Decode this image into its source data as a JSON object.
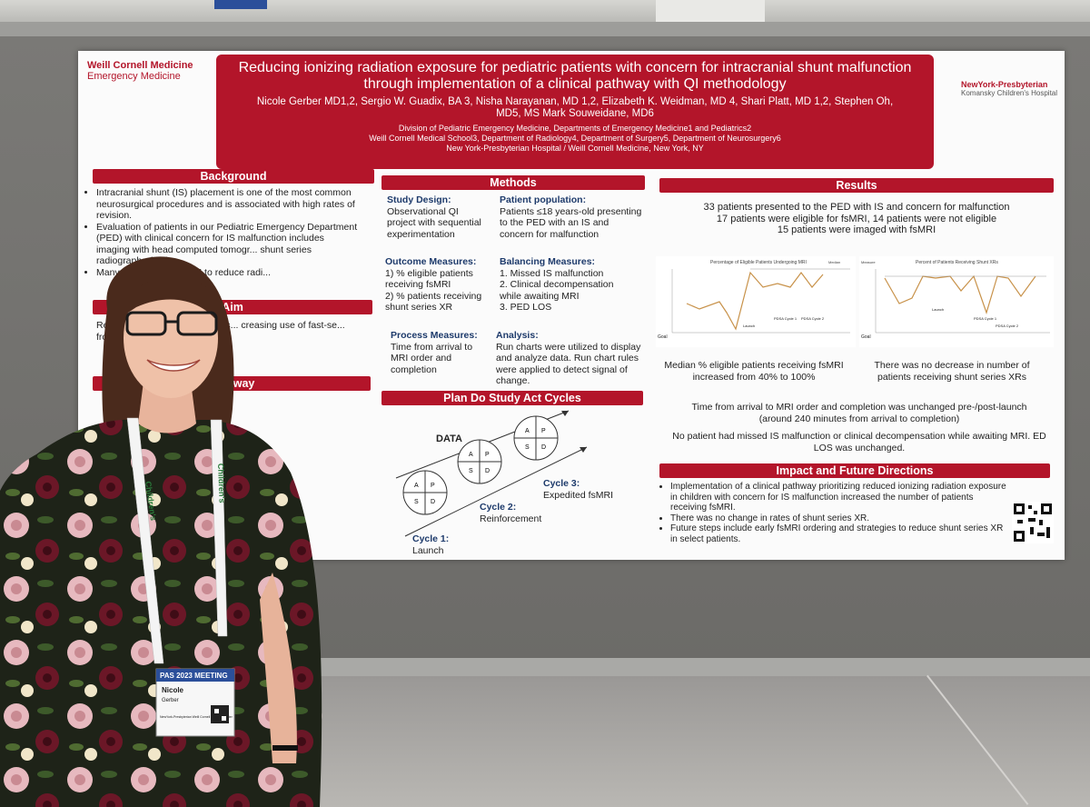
{
  "poster": {
    "logo_left": {
      "name": "Weill Cornell Medicine",
      "dept": "Emergency Medicine"
    },
    "logo_right": {
      "name": "NewYork-Presbyterian",
      "sub": "Komansky Children's Hospital"
    },
    "title": "Reducing ionizing radiation exposure for pediatric patients with concern for intracranial shunt malfunction through implementation of a clinical pathway with QI methodology",
    "authors": "Nicole Gerber MD1,2, Sergio W. Guadix, BA 3, Nisha Narayanan, MD 1,2, Elizabeth K. Weidman, MD 4, Shari Platt, MD 1,2, Stephen Oh, MD5, MS Mark Souweidane, MD6",
    "affiliations": [
      "Division of Pediatric Emergency Medicine, Departments of Emergency Medicine1 and Pediatrics2",
      "Weill Cornell Medical School3, Department of Radiology4, Department of Surgery5, Department of Neurosurgery6",
      "New York-Presbyterian Hospital / Weill Cornell Medicine, New York, NY"
    ],
    "background": {
      "heading": "Background",
      "items": [
        "Intracranial shunt (IS) placement is one of the most common neurosurgical procedures and is associated with high rates of revision.",
        "Evaluation of patients in our Pediatric Emergency Department (PED) with clinical concern for IS malfunction includes imaging with head computed tomogr... shunt series radiographs (XR).",
        "Many ... ing towards MRI to reduce radi..."
      ]
    },
    "aim": {
      "heading": "Aim",
      "text": "Re... diation in children with sus... creasing use of fast-se... from 40% to 80% b... 2023."
    },
    "pathway": {
      "heading": "Pathway"
    },
    "methods": {
      "heading": "Methods",
      "study_design_label": "Study Design",
      "study_design": "Observational QI project with sequential experimentation",
      "population_label": "Patient population",
      "population": "Patients ≤18 years-old presenting to the PED with an IS and concern for malfunction",
      "outcome_label": "Outcome Measures",
      "outcome_items": [
        "1)  % eligible patients receiving fsMRI",
        "2)  % patients receiving shunt series XR"
      ],
      "balancing_label": "Balancing Measures",
      "balancing_items": [
        "1.  Missed IS malfunction",
        "2.  Clinical decompensation while awaiting MRI",
        "3.  PED LOS"
      ],
      "process_label": "Process Measures",
      "process": "Time from arrival to MRI order and completion",
      "analysis_label": "Analysis",
      "analysis": "Run charts were utilized to display and analyze data. Run chart rules were applied to detect signal of change."
    },
    "pdsa": {
      "heading": "Plan Do Study Act Cycles",
      "data_label": "DATA",
      "cycle_letters": [
        "A",
        "P",
        "S",
        "D"
      ],
      "cycles": [
        {
          "title": "Cycle 1:",
          "desc": "Launch"
        },
        {
          "title": "Cycle 2:",
          "desc": "Reinforcement"
        },
        {
          "title": "Cycle 3:",
          "desc": "Expedited fsMRI"
        }
      ]
    },
    "results": {
      "heading": "Results",
      "lines": [
        "33 patients presented to the PED with IS and concern for malfunction",
        "17 patients were eligible for fsMRI, 14 patients were not eligible",
        "15 patients were imaged with fsMRI"
      ],
      "chart1_title": "Percentage of Eligible Patients Undergoing MRI",
      "chart1_legend": "Median",
      "chart1_goal": "Goal",
      "chart1_annotations": [
        "Launch",
        "PDSA Cycle 1",
        "PDSA Cycle 2"
      ],
      "chart2_title": "Percent of Patients Receiving Shunt XRs",
      "chart2_legend": "Measure",
      "chart2_goal": "Goal",
      "chart2_annotations": [
        "Launch",
        "PDSA Cycle 1",
        "PDSA Cycle 2"
      ],
      "caption1": "Median % eligible patients receiving fsMRI increased from 40% to 100%",
      "caption2": "There was no decrease in number of patients receiving shunt series XRs",
      "time_line": "Time from arrival to MRI order and completion was unchanged pre-/post-launch (around 240 minutes from arrival to completion)",
      "safety_line": "No patient had missed IS malfunction or clinical decompensation while awaiting MRI. ED LOS was unchanged."
    },
    "impact": {
      "heading": "Impact and Future Directions",
      "items": [
        "Implementation of a clinical pathway prioritizing reduced ionizing radiation exposure in children with concern for IS malfunction increased the number of patients receiving fsMRI.",
        "There was no change in rates of shunt series XR.",
        "Future steps include early fsMRI ordering and strategies to reduce shunt series XR in select patients."
      ]
    }
  },
  "badge": {
    "lanyard_text": "Children's",
    "meeting": "PAS 2023 MEETING",
    "first_name": "Nicole",
    "last_name": "Gerber",
    "org": "NewYork-Presbyterian Weill Cornell Medical Center"
  },
  "colors": {
    "poster_red": "#b3152a",
    "board_gray": "#757471",
    "badge_blue": "#2b4f9a"
  }
}
